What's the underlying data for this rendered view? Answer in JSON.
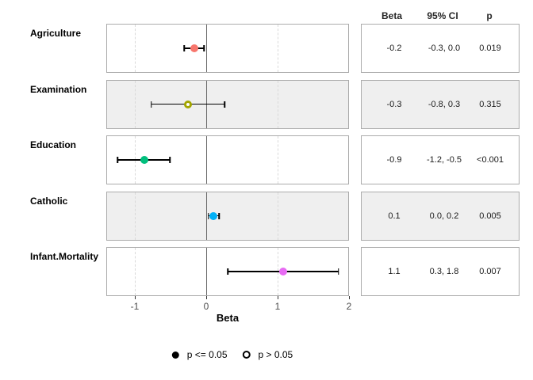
{
  "chart_data": {
    "type": "scatter",
    "subtype": "forest-plot",
    "title": "",
    "xlabel": "Beta",
    "xlim": [
      -1.4,
      2.0
    ],
    "xticks": [
      -1,
      0,
      1,
      2
    ],
    "gridlines_dashed_at": [
      -1,
      1
    ],
    "zero_line_at": 0,
    "grid": "dashed-vertical-only",
    "legend_position": "bottom",
    "table_headers": [
      "Beta",
      "95% CI",
      "p"
    ],
    "rows": [
      {
        "label": "Agriculture",
        "estimate": -0.17,
        "ci_low": -0.31,
        "ci_high": -0.03,
        "beta_display": "-0.2",
        "ci_display": "-0.3, 0.0",
        "p_display": "0.019",
        "significant": true,
        "color": "#F8766D"
      },
      {
        "label": "Examination",
        "estimate": -0.26,
        "ci_low": -0.77,
        "ci_high": 0.26,
        "beta_display": "-0.3",
        "ci_display": "-0.8, 0.3",
        "p_display": "0.315",
        "significant": false,
        "color": "#A3A500"
      },
      {
        "label": "Education",
        "estimate": -0.87,
        "ci_low": -1.24,
        "ci_high": -0.51,
        "beta_display": "-0.9",
        "ci_display": "-1.2, -0.5",
        "p_display": "<0.001",
        "significant": true,
        "color": "#00BF7D"
      },
      {
        "label": "Catholic",
        "estimate": 0.1,
        "ci_low": 0.03,
        "ci_high": 0.18,
        "beta_display": "0.1",
        "ci_display": "0.0, 0.2",
        "p_display": "0.005",
        "significant": true,
        "color": "#00B0F6"
      },
      {
        "label": "Infant.Mortality",
        "estimate": 1.08,
        "ci_low": 0.3,
        "ci_high": 1.85,
        "beta_display": "1.1",
        "ci_display": "0.3, 1.8",
        "p_display": "0.007",
        "significant": true,
        "color": "#E76BF3"
      }
    ],
    "legend": [
      {
        "marker": "filled-circle",
        "label": "p <= 0.05"
      },
      {
        "marker": "open-circle",
        "label": "p > 0.05"
      }
    ],
    "colors": {
      "panel_border": "#ABABAB",
      "alt_row_bg": "#EFEFEF",
      "gridline": "#D9D9D9",
      "zero_line": "#6A6A6A",
      "error_bar": "#000000",
      "background": "#FFFFFF"
    }
  }
}
